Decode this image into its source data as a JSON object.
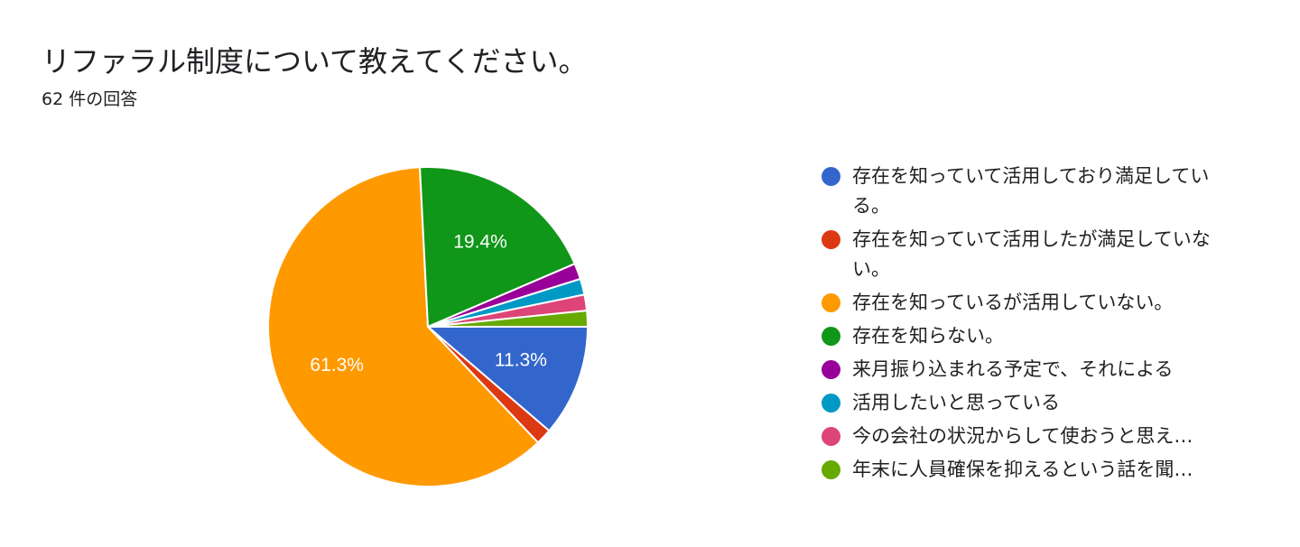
{
  "header": {
    "title": "リファラル制度について教えてください。",
    "subtitle": "62 件の回答"
  },
  "chart_data": {
    "type": "pie",
    "total": 62,
    "slices": [
      {
        "label": "存在を知っていて活用しており満足している。",
        "count": 7,
        "percent_label": "11.3%",
        "color": "#3366cc"
      },
      {
        "label": "存在を知っていて活用したが満足していない。",
        "count": 1,
        "percent_label": "",
        "color": "#dc3912"
      },
      {
        "label": "存在を知っているが活用していない。",
        "count": 38,
        "percent_label": "61.3%",
        "color": "#ff9900"
      },
      {
        "label": "存在を知らない。",
        "count": 12,
        "percent_label": "19.4%",
        "color": "#109618"
      },
      {
        "label": "来月振り込まれる予定で、それによる",
        "count": 1,
        "percent_label": "",
        "color": "#990099"
      },
      {
        "label": "活用したいと思っている",
        "count": 1,
        "percent_label": "",
        "color": "#0099c6"
      },
      {
        "label": "今の会社の状況からして使おうと思え…",
        "count": 1,
        "percent_label": "",
        "color": "#dd4477"
      },
      {
        "label": "年末に人員確保を抑えるという話を聞…",
        "count": 1,
        "percent_label": "",
        "color": "#66aa00"
      }
    ],
    "legend_position": "right"
  }
}
